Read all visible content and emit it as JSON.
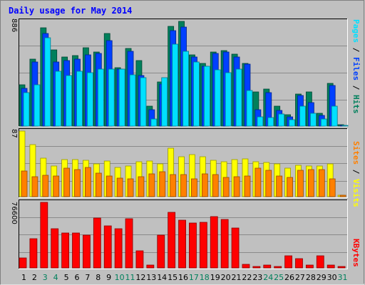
{
  "title": "Daily usage for May 2014",
  "colors": {
    "background": "#c0c0c0",
    "plot_background": "#c0c0c0",
    "grid": "#8a8a8a",
    "title": "#0000ff",
    "hits": "#00805c",
    "files": "#0040ff",
    "pages": "#00e0ff",
    "visits": "#ffff00",
    "sites": "#ff8000",
    "kbytes": "#ff0000",
    "weekend_label": "#00805c",
    "weekday_label": "#000000"
  },
  "chart_data": [
    {
      "type": "bar",
      "panel": "hits-files-pages",
      "ymax_label": "886",
      "legend": {
        "pages": "Pages",
        "sep1": " / ",
        "files": "Files",
        "sep2": " / ",
        "hits": "Hits"
      },
      "categories": [
        "1",
        "2",
        "3",
        "4",
        "5",
        "6",
        "7",
        "8",
        "9",
        "10",
        "11",
        "12",
        "13",
        "14",
        "15",
        "16",
        "17",
        "18",
        "19",
        "20",
        "21",
        "22",
        "23",
        "24",
        "25",
        "26",
        "27",
        "28",
        "29",
        "30",
        "31"
      ],
      "ylim": [
        0,
        886
      ],
      "series": [
        {
          "key": "hits",
          "name": "Hits",
          "values": [
            345,
            563,
            826,
            640,
            580,
            590,
            660,
            625,
            780,
            490,
            655,
            550,
            165,
            370,
            840,
            880,
            600,
            525,
            620,
            634,
            604,
            525,
            285,
            310,
            170,
            95,
            270,
            290,
            105,
            358,
            10
          ]
        },
        {
          "key": "files",
          "name": "Files",
          "values": [
            320,
            540,
            780,
            540,
            550,
            560,
            600,
            610,
            720,
            480,
            630,
            425,
            135,
            355,
            800,
            830,
            580,
            505,
            610,
            620,
            580,
            520,
            140,
            280,
            130,
            80,
            255,
            200,
            90,
            340,
            6
          ]
        },
        {
          "key": "pages",
          "name": "Pages",
          "values": [
            280,
            345,
            740,
            460,
            425,
            460,
            450,
            480,
            480,
            480,
            430,
            410,
            60,
            410,
            690,
            630,
            540,
            500,
            470,
            450,
            480,
            300,
            80,
            70,
            100,
            55,
            170,
            110,
            60,
            170,
            4
          ]
        }
      ]
    },
    {
      "type": "bar",
      "panel": "visits-sites",
      "ymax_label": "87",
      "legend": {
        "sites": "Sites",
        "sep": " / ",
        "visits": "Visits"
      },
      "categories": [
        "1",
        "2",
        "3",
        "4",
        "5",
        "6",
        "7",
        "8",
        "9",
        "10",
        "11",
        "12",
        "13",
        "14",
        "15",
        "16",
        "17",
        "18",
        "19",
        "20",
        "21",
        "22",
        "23",
        "24",
        "25",
        "26",
        "27",
        "28",
        "29",
        "30",
        "31"
      ],
      "ylim": [
        0,
        87
      ],
      "series": [
        {
          "key": "visits",
          "name": "Visits",
          "values": [
            85,
            68,
            50,
            40,
            48,
            48,
            47,
            43,
            46,
            38,
            40,
            45,
            46,
            43,
            63,
            52,
            55,
            52,
            47,
            45,
            48,
            49,
            45,
            44,
            43,
            37,
            41,
            40,
            40,
            43,
            2
          ]
        },
        {
          "key": "sites",
          "name": "Sites",
          "values": [
            33,
            26,
            28,
            27,
            37,
            35,
            38,
            31,
            27,
            24,
            23,
            26,
            30,
            32,
            29,
            29,
            23,
            30,
            29,
            25,
            26,
            27,
            37,
            34,
            27,
            25,
            34,
            35,
            35,
            23,
            2
          ]
        }
      ]
    },
    {
      "type": "bar",
      "panel": "kbytes",
      "ymax_label": "76600",
      "legend": {
        "kbytes": "KBytes"
      },
      "categories": [
        "1",
        "2",
        "3",
        "4",
        "5",
        "6",
        "7",
        "8",
        "9",
        "10",
        "11",
        "12",
        "13",
        "14",
        "15",
        "16",
        "17",
        "18",
        "19",
        "20",
        "21",
        "22",
        "23",
        "24",
        "25",
        "26",
        "27",
        "28",
        "29",
        "30",
        "31"
      ],
      "ylim": [
        0,
        76600
      ],
      "series": [
        {
          "key": "kbytes",
          "name": "KBytes",
          "values": [
            11300,
            34000,
            76400,
            46000,
            40500,
            40700,
            38700,
            58300,
            49400,
            45800,
            57400,
            20200,
            3500,
            38200,
            64900,
            55700,
            52400,
            53200,
            60000,
            57000,
            46800,
            4300,
            2000,
            3000,
            2000,
            14300,
            10600,
            3600,
            14500,
            3000,
            2000
          ]
        }
      ]
    }
  ],
  "weekend_days": [
    "3",
    "4",
    "10",
    "11",
    "17",
    "18",
    "24",
    "25",
    "31"
  ]
}
